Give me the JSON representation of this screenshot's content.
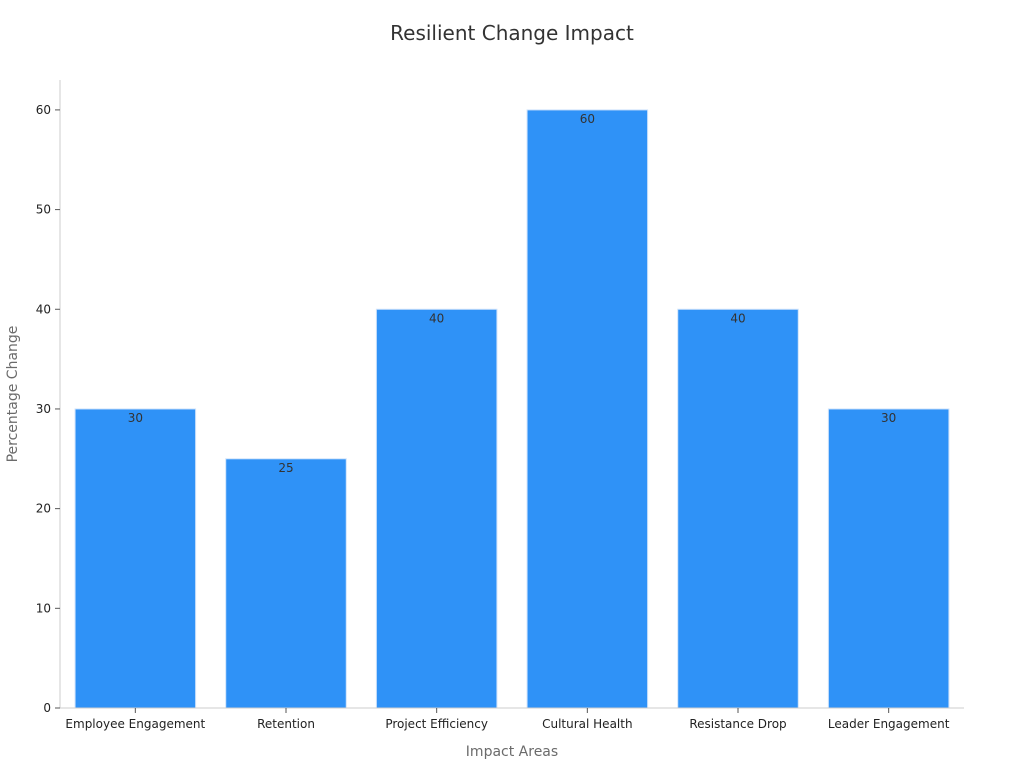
{
  "chart_data": {
    "type": "bar",
    "title": "Resilient Change Impact",
    "xlabel": "Impact Areas",
    "ylabel": "Percentage Change",
    "categories": [
      "Employee Engagement",
      "Retention",
      "Project Efficiency",
      "Cultural Health",
      "Resistance Drop",
      "Leader Engagement"
    ],
    "values": [
      30,
      25,
      40,
      60,
      40,
      30
    ],
    "ylim": [
      0,
      63
    ],
    "yticks": [
      0,
      10,
      20,
      30,
      40,
      50,
      60
    ],
    "data_labels": true,
    "grid": false,
    "legend": "none",
    "colors": {
      "bar": "#2f92f7",
      "bar_edge": "#cfe3fb"
    }
  }
}
